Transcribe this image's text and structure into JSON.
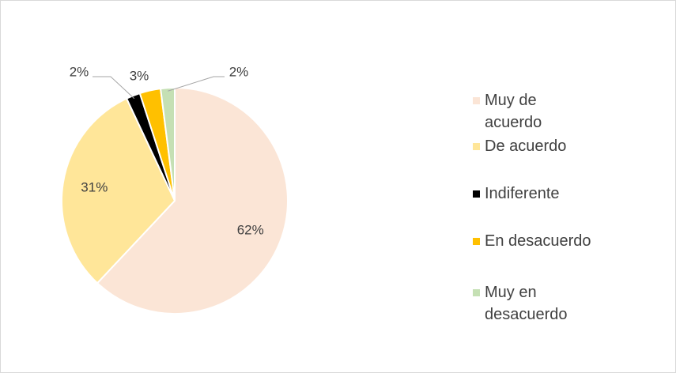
{
  "chart_data": {
    "type": "pie",
    "categories": [
      "Muy de acuerdo",
      "De acuerdo",
      "Indiferente",
      "En desacuerdo",
      "Muy en desacuerdo"
    ],
    "values": [
      62,
      31,
      2,
      3,
      2
    ],
    "colors": [
      "#fbe5d6",
      "#ffe699",
      "#000000",
      "#ffc000",
      "#c5e0b4"
    ],
    "value_labels": [
      "62%",
      "31%",
      "2%",
      "3%",
      "2%"
    ],
    "legend": "right"
  }
}
